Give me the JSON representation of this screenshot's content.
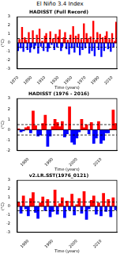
{
  "title": "El Niño 3.4 Index",
  "chart_data": [
    {
      "type": "bar",
      "title": "HADISST (Full Record)",
      "x_label": "Time (years)",
      "y_label": "(°C)",
      "categories": [
        "1870",
        null,
        null,
        null,
        null,
        null,
        null,
        null,
        null,
        null,
        "1890",
        null,
        null,
        null,
        null,
        null,
        null,
        null,
        null,
        null,
        "1910",
        null,
        null,
        null,
        null,
        null,
        null,
        null,
        null,
        null,
        "1930",
        null,
        null,
        null,
        null,
        null,
        null,
        null,
        null,
        null,
        "1950",
        null,
        null,
        null,
        null,
        null,
        null,
        null,
        null,
        null,
        "1970",
        null,
        null,
        null,
        null,
        null,
        null,
        null,
        null,
        null,
        "1990",
        null,
        null,
        null,
        null,
        null,
        null,
        null,
        null,
        null,
        "2010",
        null,
        null,
        null
      ],
      "values": [
        -0.9,
        0.4,
        -0.6,
        1.8,
        -1.0,
        0.6,
        0.3,
        -0.8,
        1.2,
        -1.1,
        -0.5,
        1.4,
        -0.7,
        -0.3,
        0.9,
        -1.2,
        1.6,
        -0.4,
        0.2,
        -0.9,
        0.8,
        1.1,
        -1.0,
        -0.6,
        1.3,
        -0.2,
        0.5,
        -0.8,
        1.0,
        -0.5,
        0.7,
        1.5,
        -0.9,
        -0.4,
        0.6,
        1.2,
        -0.7,
        0.3,
        -1.3,
        0.9,
        -0.6,
        1.9,
        -1.1,
        0.8,
        -0.5,
        1.0,
        -1.4,
        0.4,
        -0.8,
        2.2,
        -0.6,
        1.1,
        0.5,
        -1.2,
        0.7,
        -0.9,
        2.5,
        -1.5,
        0.3,
        1.2,
        -0.8,
        1.0,
        -1.6,
        0.6,
        -0.9,
        0.8,
        1.3,
        -0.7,
        0.4,
        -1.0,
        1.1,
        -0.5,
        0.2,
        2.4
      ],
      "colors": [
        "blue",
        "red",
        "blue",
        "red",
        "blue",
        "red",
        "red",
        "blue",
        "red",
        "blue",
        "blue",
        "red",
        "blue",
        "blue",
        "red",
        "blue",
        "red",
        "blue",
        "red",
        "blue",
        "red",
        "red",
        "blue",
        "blue",
        "red",
        "blue",
        "red",
        "blue",
        "red",
        "blue",
        "red",
        "red",
        "blue",
        "blue",
        "red",
        "red",
        "blue",
        "red",
        "blue",
        "red",
        "blue",
        "red",
        "blue",
        "red",
        "blue",
        "red",
        "blue",
        "red",
        "blue",
        "red",
        "blue",
        "red",
        "red",
        "blue",
        "red",
        "blue",
        "red",
        "blue",
        "red",
        "red",
        "blue",
        "red",
        "blue",
        "red",
        "blue",
        "red",
        "red",
        "blue",
        "red",
        "blue",
        "red",
        "blue",
        "red",
        "red"
      ],
      "ylim": [
        -3,
        3
      ],
      "yticks": [
        -3,
        -2,
        -1,
        0,
        1,
        2,
        3
      ],
      "thresholds": [
        -0.5,
        0.5
      ],
      "grid": false
    },
    {
      "type": "bar",
      "title": "HADISST (1976 - 2016)",
      "x_label": "Time (years)",
      "y_label": "(°C)",
      "categories": [
        null,
        null,
        null,
        null,
        "1980",
        null,
        null,
        null,
        null,
        null,
        null,
        null,
        null,
        null,
        "1990",
        null,
        null,
        null,
        null,
        null,
        null,
        null,
        null,
        null,
        "2000",
        null,
        null,
        null,
        null,
        null,
        null,
        null,
        null,
        null,
        "2010",
        null,
        null,
        null,
        null,
        null,
        null
      ],
      "values": [
        0.1,
        -0.2,
        -0.1,
        0.2,
        0.3,
        -0.3,
        1.8,
        0.4,
        -0.6,
        -0.5,
        0.6,
        1.4,
        -1.6,
        -0.6,
        0.3,
        1.0,
        0.7,
        0.3,
        0.8,
        -0.7,
        -0.4,
        2.2,
        -1.2,
        -1.4,
        -0.8,
        -0.2,
        1.0,
        0.2,
        0.5,
        -0.4,
        0.7,
        -1.3,
        -0.8,
        0.8,
        -1.3,
        -1.0,
        -0.3,
        -0.3,
        0.1,
        1.9,
        0.6
      ],
      "colors": [
        "red",
        "blue",
        "blue",
        "red",
        "red",
        "blue",
        "red",
        "red",
        "blue",
        "blue",
        "red",
        "red",
        "blue",
        "blue",
        "red",
        "red",
        "red",
        "red",
        "red",
        "blue",
        "blue",
        "red",
        "blue",
        "blue",
        "blue",
        "blue",
        "red",
        "red",
        "red",
        "blue",
        "red",
        "blue",
        "blue",
        "red",
        "blue",
        "blue",
        "blue",
        "blue",
        "red",
        "red",
        "red"
      ],
      "ylim": [
        -2,
        3
      ],
      "yticks": [
        -2,
        -1,
        0,
        1,
        2,
        3
      ],
      "thresholds": [
        -0.5,
        0.5
      ],
      "grid": false
    },
    {
      "type": "bar",
      "title": "v2.LR.SST(1976_0121)",
      "x_label": "Time (years)",
      "y_label": "(°C)",
      "categories": [
        null,
        null,
        null,
        null,
        "1980",
        null,
        null,
        null,
        null,
        null,
        null,
        null,
        null,
        null,
        "1990",
        null,
        null,
        null,
        null,
        null,
        null,
        null,
        null,
        null,
        "2000",
        null,
        null,
        null,
        null,
        null,
        null,
        null,
        null,
        null,
        "2010",
        null,
        null,
        null,
        null,
        null,
        null
      ],
      "values": [
        0.5,
        -0.8,
        1.2,
        -0.3,
        -1.1,
        0.9,
        1.6,
        -0.7,
        -1.4,
        0.4,
        1.1,
        -0.5,
        0.8,
        -1.2,
        -0.6,
        1.9,
        -0.9,
        0.3,
        1.0,
        -1.3,
        0.6,
        -0.4,
        1.4,
        -1.0,
        0.2,
        0.9,
        -0.8,
        1.7,
        -1.5,
        -0.3,
        0.7,
        1.2,
        -0.9,
        0.4,
        -1.1,
        1.5,
        -0.6,
        0.8,
        -1.2,
        1.0,
        -0.4
      ],
      "colors": [
        "red",
        "blue",
        "red",
        "blue",
        "blue",
        "red",
        "red",
        "blue",
        "blue",
        "red",
        "red",
        "blue",
        "red",
        "blue",
        "blue",
        "red",
        "blue",
        "red",
        "red",
        "blue",
        "red",
        "blue",
        "red",
        "blue",
        "red",
        "red",
        "blue",
        "red",
        "blue",
        "blue",
        "red",
        "red",
        "blue",
        "red",
        "blue",
        "red",
        "blue",
        "red",
        "blue",
        "red",
        "blue"
      ],
      "ylim": [
        -3,
        3
      ],
      "yticks": [
        -3,
        -2,
        -1,
        0,
        1,
        2,
        3
      ],
      "thresholds": [
        -0.5,
        0.5
      ],
      "grid": false
    }
  ]
}
